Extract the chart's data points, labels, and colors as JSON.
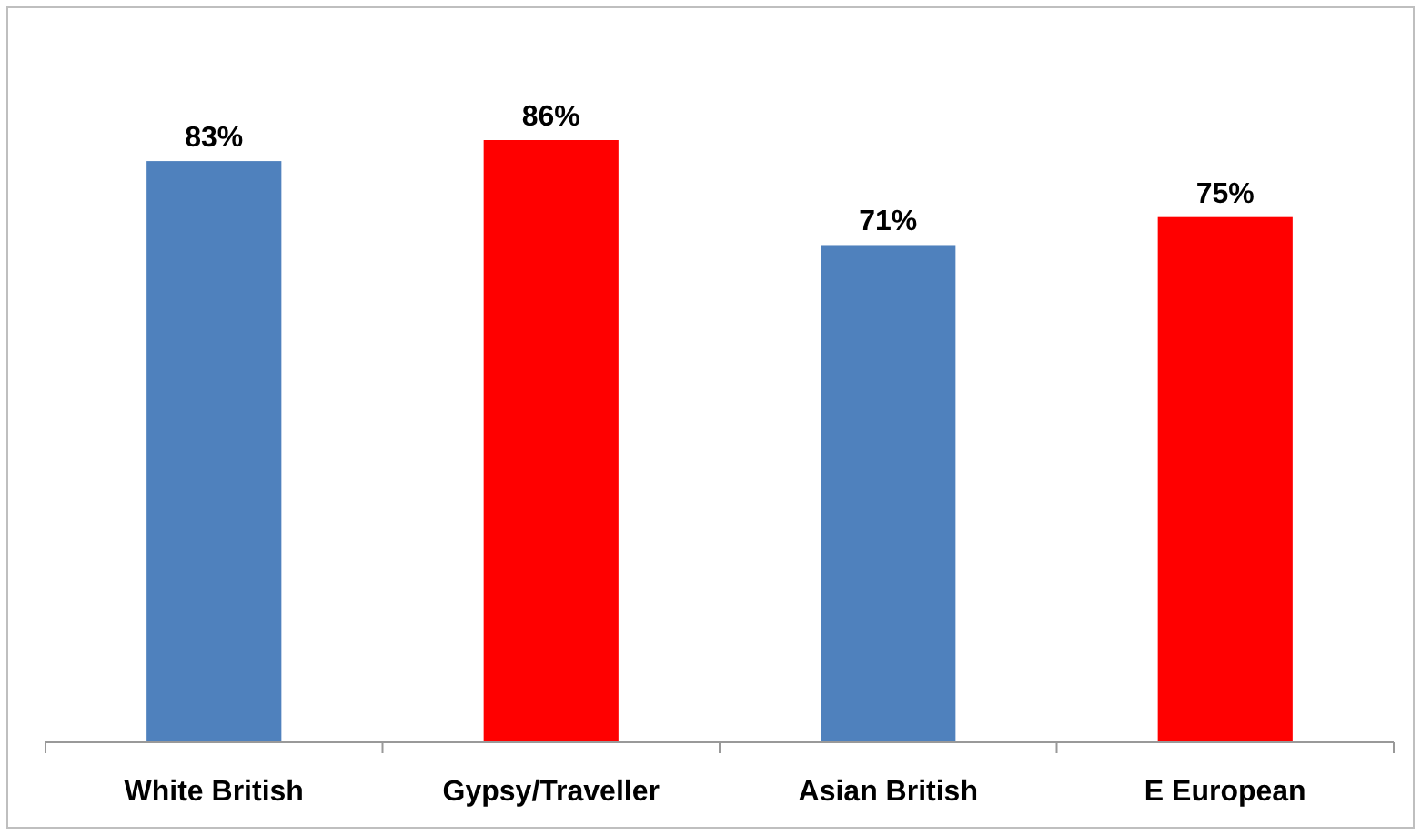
{
  "chart_data": {
    "type": "bar",
    "categories": [
      "White British",
      "Gypsy/Traveller",
      "Asian British",
      "E European"
    ],
    "values": [
      83,
      86,
      71,
      75
    ],
    "colors": [
      "#4f81bd",
      "#ff0000",
      "#4f81bd",
      "#ff0000"
    ],
    "value_labels": [
      "83%",
      "86%",
      "71%",
      "75%"
    ],
    "tick_labels": "x"
  }
}
